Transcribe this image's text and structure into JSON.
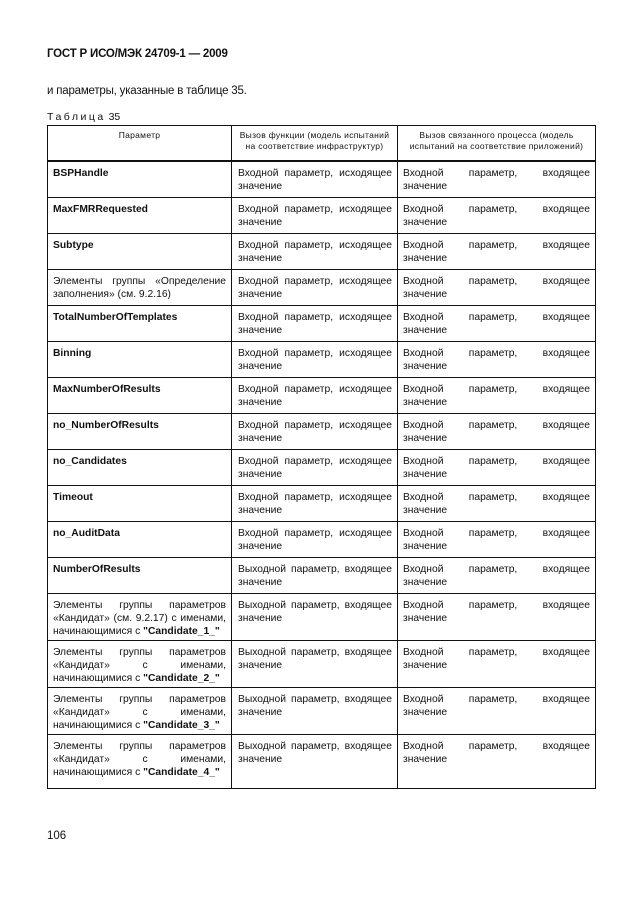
{
  "header": "ГОСТ Р ИСО/МЭК 24709-1 — 2009",
  "intro": "и параметры, указанные в таблице 35.",
  "caption": {
    "label": "Таблица",
    "number": "35"
  },
  "columns": [
    "Параметр",
    "Вызов функции (модель испытаний на соответствие инфраструктур)",
    "Вызов связанного процесса (модель испытаний на соответствие приложений)"
  ],
  "rows": [
    {
      "p": "",
      "b": "BSPHandle",
      "c2": "Входной параметр, исходящее значение",
      "c3": "Входной параметр, входящее значение"
    },
    {
      "p": "",
      "b": "MaxFMRRequested",
      "c2": "Входной параметр, исходящее значение",
      "c3": "Входной параметр, входящее значение"
    },
    {
      "p": "",
      "b": "Subtype",
      "c2": "Входной параметр, исходящее значение",
      "c3": "Входной параметр, входящее значение"
    },
    {
      "p": "Элементы группы «Определение заполнения» (см. 9.2.16)",
      "b": "",
      "c2": "Входной параметр, исходящее значение",
      "c3": "Входной параметр, входящее значение"
    },
    {
      "p": "",
      "b": "TotalNumberOfTemplates",
      "c2": "Входной параметр, исходящее значение",
      "c3": "Входной параметр, входящее значение"
    },
    {
      "p": "",
      "b": "Binning",
      "c2": "Входной параметр, исходящее значение",
      "c3": "Входной параметр, входящее значение"
    },
    {
      "p": "",
      "b": "MaxNumberOfResults",
      "c2": "Входной параметр, исходящее значение",
      "c3": "Входной параметр, входящее значение"
    },
    {
      "p": "",
      "b": "no_NumberOfResults",
      "c2": "Входной параметр, исходящее значение",
      "c3": "Входной параметр, входящее значение"
    },
    {
      "p": "",
      "b": "no_Candidates",
      "c2": "Входной параметр, исходящее значение",
      "c3": "Входной параметр, входящее значение"
    },
    {
      "p": "",
      "b": "Timeout",
      "c2": "Входной параметр, исходящее значение",
      "c3": "Входной параметр, входящее значение"
    },
    {
      "p": "",
      "b": "no_AuditData",
      "c2": "Входной параметр, исходящее значение",
      "c3": "Входной параметр, входящее значение"
    },
    {
      "p": "",
      "b": "NumberOfResults",
      "c2": "Выходной параметр, входящее значение",
      "c3": "Входной параметр, входящее значение"
    },
    {
      "p": "Элементы группы параметров «Кандидат» (см. 9.2.17) с именами, начинающимися с ",
      "b": "\"Candidate_1_\"",
      "c2": "Выходной параметр, входящее значение",
      "c3": "Входной параметр, входящее значение"
    },
    {
      "p": "Элементы группы параметров «Кандидат» с именами, начинающимися с ",
      "b": "\"Candidate_2_\"",
      "c2": "Выходной параметр, входящее значение",
      "c3": "Входной параметр, входящее значение"
    },
    {
      "p": "Элементы группы параметров «Кандидат» с именами, начинающимися с ",
      "b": "\"Candidate_3_\"",
      "c2": "Выходной параметр, входящее значение",
      "c3": "Входной параметр, входящее значение"
    },
    {
      "p": "Элементы группы параметров «Кандидат» с именами, начинающимися с ",
      "b": "\"Candidate_4_\"",
      "c2": "Выходной параметр, входящее значение",
      "c3": "Входной параметр, входящее значение"
    }
  ],
  "page_number": "106"
}
